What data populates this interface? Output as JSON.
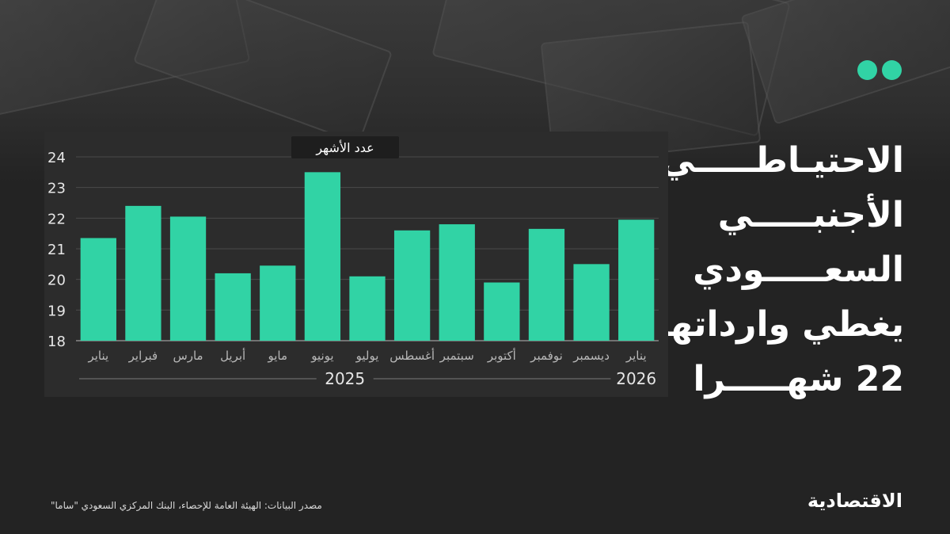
{
  "headline": {
    "lines": [
      "الاحتيـاطـــــي",
      "الأجنبـــــي",
      "السعـــــودي",
      "يغطي وارداتها",
      "22 شهـــــرا"
    ]
  },
  "source": "مصدر البيانات: الهيئة العامة للإحصاء، البنك المركزي السعودي \"ساما\"",
  "logo": "الاقتصادية",
  "colors": {
    "accent": "#31d3a5",
    "background": "#232323",
    "panel": "#2c2c2c"
  },
  "chart_data": {
    "type": "bar",
    "title": "",
    "ylabel": "عدد الأشهر",
    "xlabel": "",
    "ylim": [
      18,
      24
    ],
    "yticks": [
      18,
      19,
      20,
      21,
      22,
      23,
      24
    ],
    "categories": [
      "يناير",
      "فبراير",
      "مارس",
      "أبريل",
      "مايو",
      "يونيو",
      "يوليو",
      "أغسطس",
      "سبتمبر",
      "أكتوبر",
      "نوفمبر",
      "ديسمبر",
      "يناير"
    ],
    "values": [
      21.35,
      22.4,
      22.05,
      20.2,
      20.45,
      23.5,
      20.1,
      21.6,
      21.8,
      19.9,
      21.65,
      20.5,
      21.95
    ],
    "groups": [
      {
        "label": "2025",
        "from": 0,
        "to": 11
      },
      {
        "label": "2026",
        "from": 12,
        "to": 12
      }
    ],
    "color": "#31d3a5",
    "grid": true
  }
}
